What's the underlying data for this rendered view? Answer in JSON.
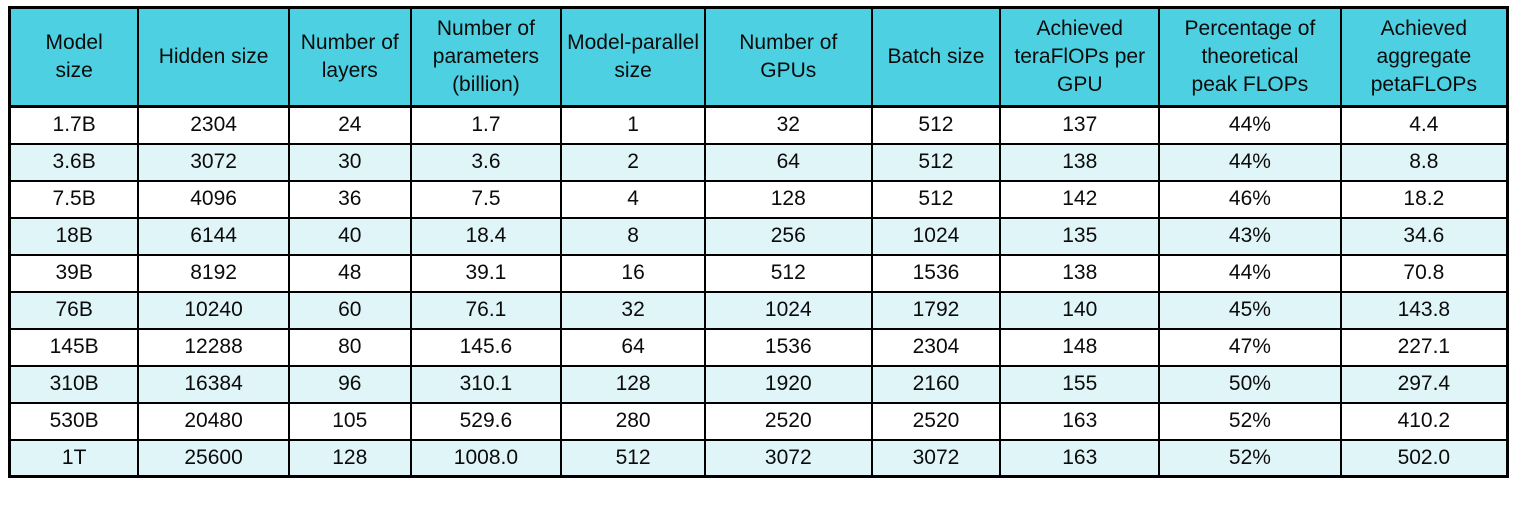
{
  "chart_data": {
    "type": "table",
    "columns": [
      "Model size",
      "Hidden size",
      "Number of layers",
      "Number of parameters (billion)",
      "Model-parallel size",
      "Number of GPUs",
      "Batch size",
      "Achieved teraFlOPs per GPU",
      "Percentage of theoretical peak FLOPs",
      "Achieved aggregate petaFLOPs"
    ],
    "rows": [
      [
        "1.7B",
        2304,
        24,
        1.7,
        1,
        32,
        512,
        137,
        "44%",
        4.4
      ],
      [
        "3.6B",
        3072,
        30,
        3.6,
        2,
        64,
        512,
        138,
        "44%",
        8.8
      ],
      [
        "7.5B",
        4096,
        36,
        7.5,
        4,
        128,
        512,
        142,
        "46%",
        18.2
      ],
      [
        "18B",
        6144,
        40,
        18.4,
        8,
        256,
        1024,
        135,
        "43%",
        34.6
      ],
      [
        "39B",
        8192,
        48,
        39.1,
        16,
        512,
        1536,
        138,
        "44%",
        70.8
      ],
      [
        "76B",
        10240,
        60,
        76.1,
        32,
        1024,
        1792,
        140,
        "45%",
        143.8
      ],
      [
        "145B",
        12288,
        80,
        145.6,
        64,
        1536,
        2304,
        148,
        "47%",
        227.1
      ],
      [
        "310B",
        16384,
        96,
        310.1,
        128,
        1920,
        2160,
        155,
        "50%",
        297.4
      ],
      [
        "530B",
        20480,
        105,
        529.6,
        280,
        2520,
        2520,
        163,
        "52%",
        410.2
      ],
      [
        "1T",
        25600,
        128,
        "1008.0",
        512,
        3072,
        3072,
        163,
        "52%",
        "502.0"
      ]
    ],
    "layout": {
      "header_background": "#4dd0e1",
      "row_stripe_colors": [
        "#ffffff",
        "#e0f5f8"
      ],
      "grid": "solid black borders",
      "text_align": "center"
    }
  },
  "table": {
    "headers": [
      "Model\nsize",
      "Hidden size",
      "Number of\nlayers",
      "Number of\nparameters\n(billion)",
      "Model-parallel\nsize",
      "Number of\nGPUs",
      "Batch size",
      "Achieved\nteraFlOPs per\nGPU",
      "Percentage of\ntheoretical\npeak FLOPs",
      "Achieved\naggregate\npetaFLOPs"
    ],
    "rows": [
      [
        "1.7B",
        "2304",
        "24",
        "1.7",
        "1",
        "32",
        "512",
        "137",
        "44%",
        "4.4"
      ],
      [
        "3.6B",
        "3072",
        "30",
        "3.6",
        "2",
        "64",
        "512",
        "138",
        "44%",
        "8.8"
      ],
      [
        "7.5B",
        "4096",
        "36",
        "7.5",
        "4",
        "128",
        "512",
        "142",
        "46%",
        "18.2"
      ],
      [
        "18B",
        "6144",
        "40",
        "18.4",
        "8",
        "256",
        "1024",
        "135",
        "43%",
        "34.6"
      ],
      [
        "39B",
        "8192",
        "48",
        "39.1",
        "16",
        "512",
        "1536",
        "138",
        "44%",
        "70.8"
      ],
      [
        "76B",
        "10240",
        "60",
        "76.1",
        "32",
        "1024",
        "1792",
        "140",
        "45%",
        "143.8"
      ],
      [
        "145B",
        "12288",
        "80",
        "145.6",
        "64",
        "1536",
        "2304",
        "148",
        "47%",
        "227.1"
      ],
      [
        "310B",
        "16384",
        "96",
        "310.1",
        "128",
        "1920",
        "2160",
        "155",
        "50%",
        "297.4"
      ],
      [
        "530B",
        "20480",
        "105",
        "529.6",
        "280",
        "2520",
        "2520",
        "163",
        "52%",
        "410.2"
      ],
      [
        "1T",
        "25600",
        "128",
        "1008.0",
        "512",
        "3072",
        "3072",
        "163",
        "52%",
        "502.0"
      ]
    ],
    "colors": {
      "header_bg": "#4dd0e1",
      "row_alt_bg": "#e0f5f8",
      "border": "#000000",
      "text": "#0b0b0b"
    }
  }
}
